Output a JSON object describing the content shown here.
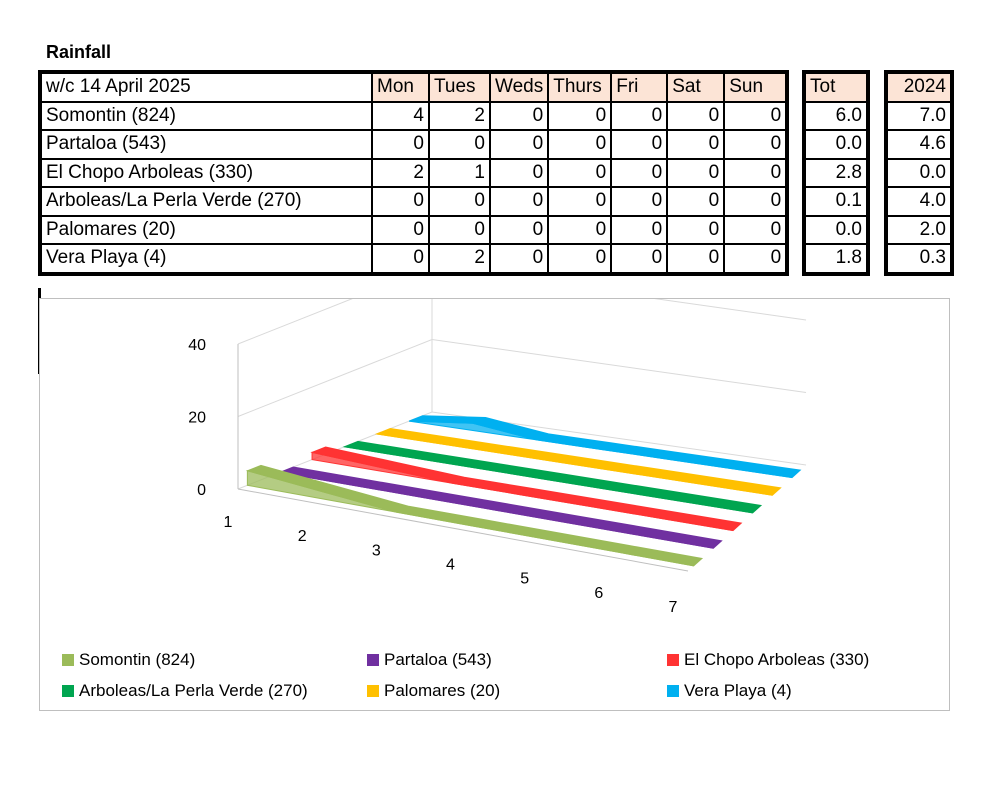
{
  "title": "Rainfall",
  "table": {
    "header_label": "w/c 14 April  2025",
    "days": [
      "Mon",
      "Tues",
      "Weds",
      "Thurs",
      "Fri",
      "Sat",
      "Sun"
    ],
    "tot_label": "Tot",
    "prev_label": "2024",
    "rows": [
      {
        "name": "Somontin (824)",
        "values": [
          "4",
          "2",
          "0",
          "0",
          "0",
          "0",
          "0"
        ],
        "tot": "6.0",
        "prev": "7.0"
      },
      {
        "name": "Partaloa (543)",
        "values": [
          "0",
          "0",
          "0",
          "0",
          "0",
          "0",
          "0"
        ],
        "tot": "0.0",
        "prev": "4.6"
      },
      {
        "name": "El Chopo Arboleas (330)",
        "values": [
          "2",
          "1",
          "0",
          "0",
          "0",
          "0",
          "0"
        ],
        "tot": "2.8",
        "prev": "0.0"
      },
      {
        "name": "Arboleas/La Perla Verde (270)",
        "values": [
          "0",
          "0",
          "0",
          "0",
          "0",
          "0",
          "0"
        ],
        "tot": "0.1",
        "prev": "4.0"
      },
      {
        "name": "Palomares (20)",
        "values": [
          "0",
          "0",
          "0",
          "0",
          "0",
          "0",
          "0"
        ],
        "tot": "0.0",
        "prev": "2.0"
      },
      {
        "name": "Vera Playa (4)",
        "values": [
          "0",
          "2",
          "0",
          "0",
          "0",
          "0",
          "0"
        ],
        "tot": "1.8",
        "prev": "0.3"
      }
    ]
  },
  "chart_data": {
    "type": "area",
    "subtype": "3d-area",
    "categories": [
      "1",
      "2",
      "3",
      "4",
      "5",
      "6",
      "7"
    ],
    "yticks": [
      "0",
      "20",
      "40"
    ],
    "ylim": [
      0,
      40
    ],
    "grid": true,
    "legend_position": "bottom",
    "series": [
      {
        "name": "Somontin (824)",
        "values": [
          4,
          2,
          0,
          0,
          0,
          0,
          0
        ],
        "color": "#9bbb59"
      },
      {
        "name": "Partaloa (543)",
        "values": [
          0,
          0,
          0,
          0,
          0,
          0,
          0
        ],
        "color": "#7030a0"
      },
      {
        "name": "El Chopo Arboleas (330)",
        "values": [
          2,
          1,
          0,
          0,
          0,
          0,
          0
        ],
        "color": "#ff3333"
      },
      {
        "name": "Arboleas/La Perla Verde (270)",
        "values": [
          0,
          0,
          0,
          0,
          0,
          0,
          0
        ],
        "color": "#00a550"
      },
      {
        "name": "Palomares (20)",
        "values": [
          0,
          0,
          0,
          0,
          0,
          0,
          0
        ],
        "color": "#ffc000"
      },
      {
        "name": "Vera Playa (4)",
        "values": [
          0,
          2,
          0,
          0,
          0,
          0,
          0
        ],
        "color": "#00b0f0"
      }
    ]
  }
}
